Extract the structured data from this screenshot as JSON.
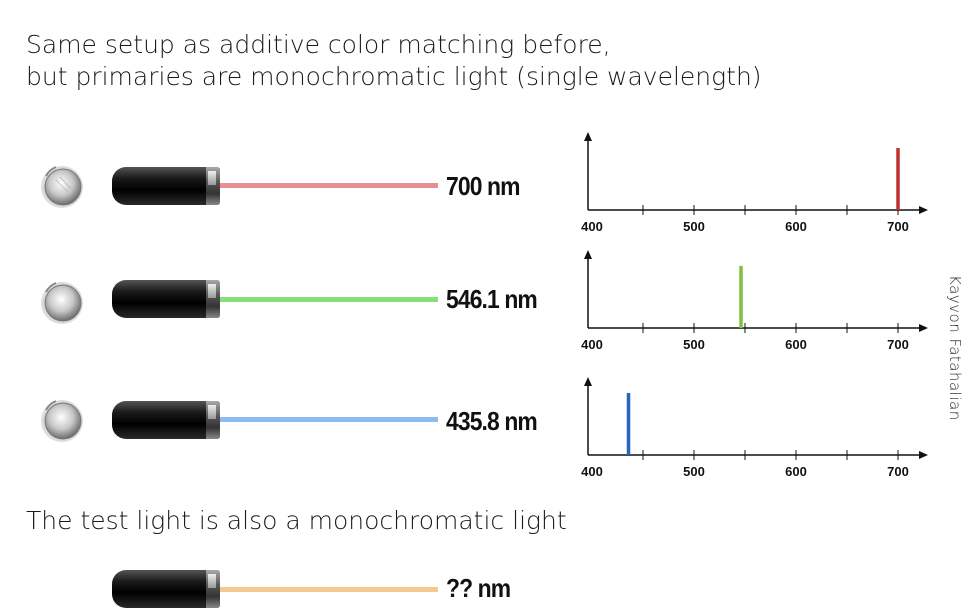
{
  "title": {
    "line1": "Same setup as additive color matching before,",
    "line2": "but primaries are monochromatic light (single wavelength)"
  },
  "primaries": [
    {
      "label": "700 nm",
      "beam_color": "#e88f96",
      "line_color": "#c0302f",
      "wavelength": 700
    },
    {
      "label": "546.1 nm",
      "beam_color": "#86e07a",
      "line_color": "#7dc241",
      "wavelength": 546.1
    },
    {
      "label": "435.8 nm",
      "beam_color": "#8fbcf0",
      "line_color": "#2a64c0",
      "wavelength": 435.8
    }
  ],
  "chart_data": [
    {
      "type": "bar",
      "x": [
        700
      ],
      "values": [
        1
      ],
      "xlim": [
        400,
        700
      ],
      "x_ticks": [
        "400",
        "500",
        "600",
        "700"
      ],
      "title": "",
      "xlabel": "",
      "ylabel": ""
    },
    {
      "type": "bar",
      "x": [
        546.1
      ],
      "values": [
        1
      ],
      "xlim": [
        400,
        700
      ],
      "x_ticks": [
        "400",
        "500",
        "600",
        "700"
      ],
      "title": "",
      "xlabel": "",
      "ylabel": ""
    },
    {
      "type": "bar",
      "x": [
        435.8
      ],
      "values": [
        1
      ],
      "xlim": [
        400,
        700
      ],
      "x_ticks": [
        "400",
        "500",
        "600",
        "700"
      ],
      "title": "",
      "xlabel": "",
      "ylabel": ""
    }
  ],
  "test_light": {
    "caption": "The test light is also a monochromatic light",
    "label": "?? nm",
    "beam_color": "#f2c98f"
  },
  "author": "Kayvon Fatahalian",
  "icons": {
    "knob": "dial-knob-icon",
    "laser": "laser-pointer-icon"
  }
}
